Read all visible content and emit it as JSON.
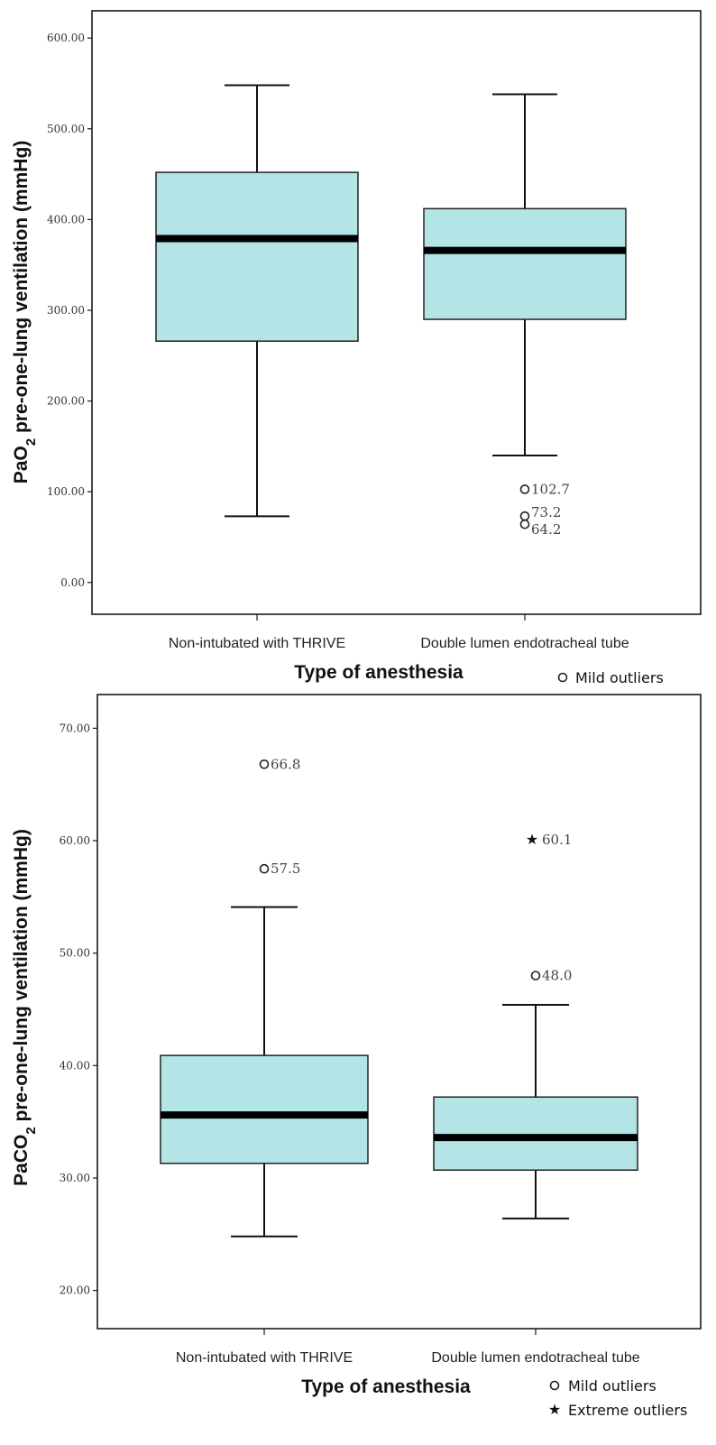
{
  "chart_data": [
    {
      "type": "box",
      "xlabel": "Type of anesthesia",
      "ylabel": "PaO2 pre-one-lung ventilation (mmHg)",
      "ylabel_parts": [
        "PaO",
        "2",
        " pre-one-lung ventilation (mmHg)"
      ],
      "ylim": [
        -35,
        630
      ],
      "yticks": [
        0,
        100,
        200,
        300,
        400,
        500,
        600
      ],
      "ytick_labels": [
        "0.00",
        "100.00",
        "200.00",
        "300.00",
        "400.00",
        "500.00",
        "600.00"
      ],
      "categories": [
        "Non-intubated with THRIVE",
        "Double lumen endotracheal tube"
      ],
      "boxes": [
        {
          "whisker_low": 73,
          "q1": 266,
          "median": 379,
          "q3": 452,
          "whisker_high": 548
        },
        {
          "whisker_low": 140,
          "q1": 290,
          "median": 366,
          "q3": 412,
          "whisker_high": 538
        }
      ],
      "outliers": [
        {
          "category": 1,
          "value": 102.7,
          "label": "102.7",
          "kind": "mild"
        },
        {
          "category": 1,
          "value": 73.2,
          "label": "73.2",
          "kind": "mild"
        },
        {
          "category": 1,
          "value": 64.2,
          "label": "64.2",
          "kind": "mild"
        }
      ],
      "legend": [
        {
          "symbol": "o",
          "label": "Mild outliers"
        }
      ],
      "box_color": "#b3e5e6",
      "grid": false
    },
    {
      "type": "box",
      "xlabel": "Type of anesthesia",
      "ylabel": "PaCO2 pre-one-lung ventilation (mmHg)",
      "ylabel_parts": [
        "PaCO",
        "2",
        " pre-one-lung ventilation (mmHg)"
      ],
      "ylim": [
        16.6,
        73
      ],
      "yticks": [
        20,
        30,
        40,
        50,
        60,
        70
      ],
      "ytick_labels": [
        "20.00",
        "30.00",
        "40.00",
        "50.00",
        "60.00",
        "70.00"
      ],
      "categories": [
        "Non-intubated with THRIVE",
        "Double lumen endotracheal tube"
      ],
      "boxes": [
        {
          "whisker_low": 24.8,
          "q1": 31.3,
          "median": 35.6,
          "q3": 40.9,
          "whisker_high": 54.1
        },
        {
          "whisker_low": 26.4,
          "q1": 30.7,
          "median": 33.6,
          "q3": 37.2,
          "whisker_high": 45.4
        }
      ],
      "outliers": [
        {
          "category": 0,
          "value": 66.8,
          "label": "66.8",
          "kind": "mild"
        },
        {
          "category": 0,
          "value": 57.5,
          "label": "57.5",
          "kind": "mild"
        },
        {
          "category": 1,
          "value": 60.1,
          "label": "60.1",
          "kind": "extreme"
        },
        {
          "category": 1,
          "value": 48.0,
          "label": "48.0",
          "kind": "mild"
        }
      ],
      "legend": [
        {
          "symbol": "o",
          "label": "Mild outliers"
        },
        {
          "symbol": "*",
          "label": "Extreme outliers"
        }
      ],
      "box_color": "#b3e5e6",
      "grid": false
    }
  ]
}
